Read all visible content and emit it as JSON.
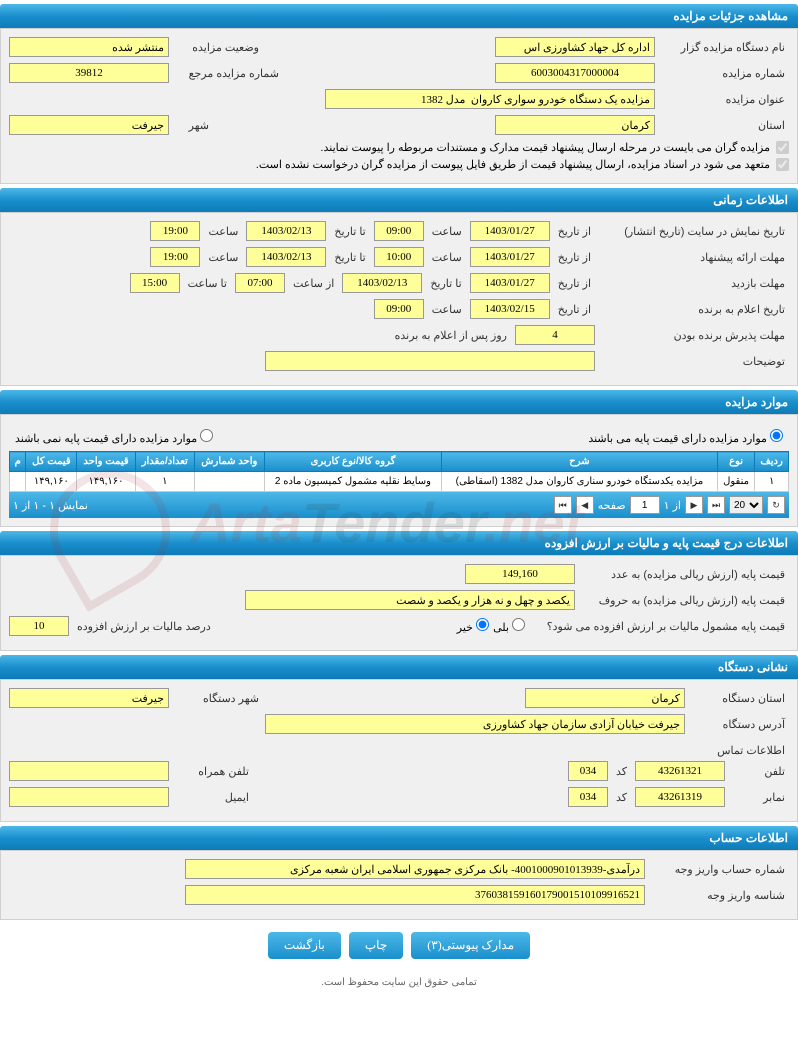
{
  "sections": {
    "details": {
      "title": "مشاهده جزئیات مزایده",
      "fields": {
        "org_label": "نام دستگاه مزایده گزار",
        "org_value": "اداره کل جهاد کشاورزی اس",
        "status_label": "وضعیت مزایده",
        "status_value": "منتشر شده",
        "auction_no_label": "شماره مزایده",
        "auction_no_value": "6003004317000004",
        "ref_no_label": "شماره مزایده مرجع",
        "ref_no_value": "39812",
        "subject_label": "عنوان مزایده",
        "subject_value": "مزایده یک دستگاه خودرو سواری کاروان  مدل 1382",
        "province_label": "استان",
        "province_value": "کرمان",
        "city_label": "شهر",
        "city_value": "جیرفت",
        "check1": "مزایده گران می بایست در مرحله ارسال پیشنهاد قیمت مدارک و مستندات مربوطه را پیوست نمایند.",
        "check2": "متعهد می شود در اسناد مزایده، ارسال پیشنهاد قیمت از طریق فایل پیوست از مزایده گران درخواست نشده است."
      }
    },
    "timing": {
      "title": "اطلاعات زمانی",
      "fields": {
        "display_label": "تاریخ نمایش در سایت (تاریخ انتشار)",
        "from_date_label": "از تاریخ",
        "to_date_label": "تا تاریخ",
        "time_label": "ساعت",
        "from_time_label": "از ساعت",
        "to_time_label": "تا ساعت",
        "display_from_date": "1403/01/27",
        "display_from_time": "09:00",
        "display_to_date": "1403/02/13",
        "display_to_time": "19:00",
        "proposal_label": "مهلت ارائه پیشنهاد",
        "proposal_from_date": "1403/01/27",
        "proposal_from_time": "10:00",
        "proposal_to_date": "1403/02/13",
        "proposal_to_time": "19:00",
        "visit_label": "مهلت بازدید",
        "visit_from_date": "1403/01/27",
        "visit_to_date": "1403/02/13",
        "visit_from_time": "07:00",
        "visit_to_time": "15:00",
        "winner_label": "تاریخ اعلام به برنده",
        "winner_date": "1403/02/15",
        "winner_time": "09:00",
        "accept_label": "مهلت پذیرش برنده بودن",
        "accept_days": "4",
        "accept_suffix": "روز پس از اعلام به برنده",
        "notes_label": "توضیحات"
      }
    },
    "items": {
      "title": "موارد مزایده",
      "radio_has_base": "موارد مزایده دارای قیمت پایه می باشند",
      "radio_no_base": "موارد مزایده دارای قیمت پایه نمی باشند",
      "columns": [
        "ردیف",
        "نوع",
        "شرح",
        "گروه کالا/نوع کاربری",
        "واحد شمارش",
        "تعداد/مقدار",
        "قیمت واحد",
        "قیمت کل",
        "م"
      ],
      "rows": [
        [
          "۱",
          "منقول",
          "مزایده یکدستگاه خودرو سناری کاروان مدل 1382 (اسقاطی)",
          "وسایط نقلیه مشمول کمیسیون ماده 2",
          "",
          "۱",
          "۱۴۹,۱۶۰",
          "۱۴۹,۱۶۰",
          ""
        ]
      ],
      "pager_info": "نمایش ۱ - ۱ از ۱",
      "pager_page_label": "صفحه",
      "pager_page": "1",
      "pager_of": "از ۱",
      "pager_size": "20"
    },
    "pricing": {
      "title": "اطلاعات درج قیمت پایه و مالیات بر ارزش افزوده",
      "base_num_label": "قیمت پایه (ارزش ریالی مزایده) به عدد",
      "base_num_value": "149,160",
      "base_word_label": "قیمت پایه (ارزش ریالی مزایده) به حروف",
      "base_word_value": "یکصد و چهل و نه هزار و یکصد و شصت",
      "vat_question": "قیمت پایه مشمول مالیات بر ارزش افزوده می شود؟",
      "vat_yes": "بلی",
      "vat_no": "خیر",
      "vat_pct_label": "درصد مالیات بر ارزش افزوده",
      "vat_pct_value": "10"
    },
    "address": {
      "title": "نشانی دستگاه",
      "province_label": "استان دستگاه",
      "province_value": "کرمان",
      "city_label": "شهر دستگاه",
      "city_value": "جیرفت",
      "addr_label": "آدرس دستگاه",
      "addr_value": "جیرفت خیابان آزادی سازمان جهاد کشاورزی",
      "contact_title": "اطلاعات تماس",
      "phone_label": "تلفن",
      "phone_value": "43261321",
      "code_label": "کد",
      "phone_code": "034",
      "mobile_label": "تلفن همراه",
      "fax_label": "نمابر",
      "fax_value": "43261319",
      "fax_code": "034",
      "email_label": "ایمیل"
    },
    "account": {
      "title": "اطلاعات حساب",
      "account_no_label": "شماره حساب واریز وجه",
      "account_no_value": "درآمدی-4001000901013939- بانک مرکزی جمهوری اسلامی ایران شعبه مرکزی",
      "pay_id_label": "شناسه واریز وجه",
      "pay_id_value": "376038159160179001510109916521"
    }
  },
  "buttons": {
    "attachments": "مدارک پیوستی(۳)",
    "print": "چاپ",
    "back": "بازگشت"
  },
  "footer": "تمامی حقوق این سایت محفوظ است.",
  "watermark": {
    "text1": "Arta",
    "text2": "Tender",
    "text3": ".net"
  },
  "colors": {
    "header_grad_top": "#4db8e8",
    "header_grad_bottom": "#0d7bb8",
    "input_bg": "#ffff99",
    "body_bg": "#f0f0f0"
  }
}
